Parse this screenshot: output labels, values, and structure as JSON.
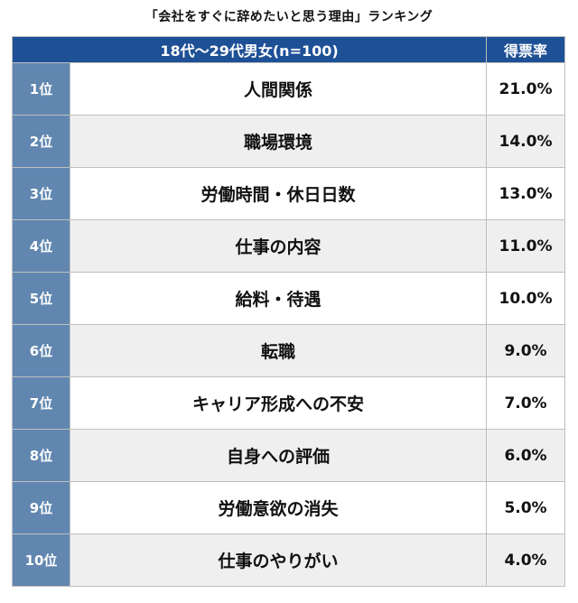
{
  "title": "「会社をすぐに辞めたいと思う理由」ランキング",
  "header": {
    "group": "18代〜29代男女(n=100)",
    "rate": "得票率"
  },
  "colors": {
    "header_bg": "#1e5096",
    "rank_bg": "#6187b0",
    "alt_row_bg": "#efefef"
  },
  "chart_data": {
    "type": "table",
    "title": "「会社をすぐに辞めたいと思う理由」ランキング",
    "columns": [
      "",
      "18代〜29代男女(n=100)",
      "得票率"
    ],
    "rows": [
      {
        "rank": "1位",
        "reason": "人間関係",
        "percent": "21.0%",
        "value": 21.0
      },
      {
        "rank": "2位",
        "reason": "職場環境",
        "percent": "14.0%",
        "value": 14.0
      },
      {
        "rank": "3位",
        "reason": "労働時間・休日日数",
        "percent": "13.0%",
        "value": 13.0
      },
      {
        "rank": "4位",
        "reason": "仕事の内容",
        "percent": "11.0%",
        "value": 11.0
      },
      {
        "rank": "5位",
        "reason": "給料・待遇",
        "percent": "10.0%",
        "value": 10.0
      },
      {
        "rank": "6位",
        "reason": "転職",
        "percent": "9.0%",
        "value": 9.0
      },
      {
        "rank": "7位",
        "reason": "キャリア形成への不安",
        "percent": "7.0%",
        "value": 7.0
      },
      {
        "rank": "8位",
        "reason": "自身への評価",
        "percent": "6.0%",
        "value": 6.0
      },
      {
        "rank": "9位",
        "reason": "労働意欲の消失",
        "percent": "5.0%",
        "value": 5.0
      },
      {
        "rank": "10位",
        "reason": "仕事のやりがい",
        "percent": "4.0%",
        "value": 4.0
      }
    ]
  }
}
